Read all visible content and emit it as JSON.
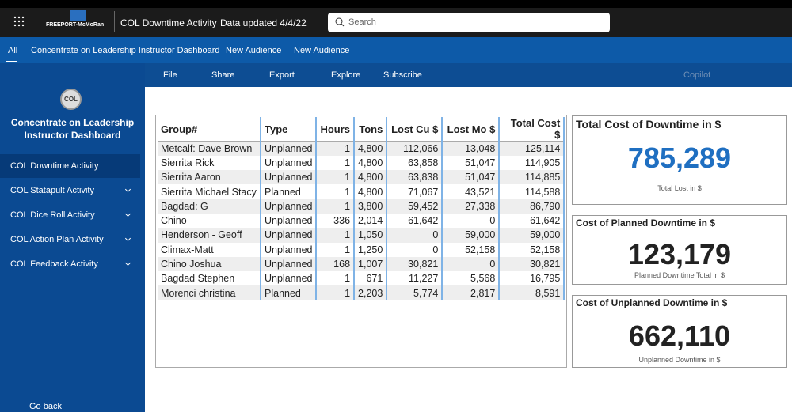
{
  "header": {
    "logo": "FREEPORT-McMoRan",
    "report_name": "COL Downtime Activity",
    "data_updated": "Data updated 4/4/22",
    "search_placeholder": "Search"
  },
  "nav": {
    "tabs": [
      "All",
      "Concentrate on Leadership Instructor Dashboard",
      "New Audience",
      "New Audience"
    ]
  },
  "toolbar": {
    "items": [
      "File",
      "Share",
      "Export",
      "Explore",
      "Subscribe"
    ],
    "copilot": "Copilot"
  },
  "sidebar": {
    "logo": "COL",
    "title": "Concentrate on Leadership Instructor Dashboard",
    "items": [
      "COL Downtime Activity",
      "COL Statapult Activity",
      "COL Dice Roll Activity",
      "COL Action Plan Activity",
      "COL Feedback Activity"
    ],
    "back": "Go back"
  },
  "table": {
    "columns": [
      "Group#",
      "Type",
      "Hours",
      "Tons",
      "Lost Cu $",
      "Lost Mo $",
      "Total Cost $"
    ],
    "rows": [
      [
        "Metcalf: Dave Brown",
        "Unplanned",
        "1",
        "4,800",
        "112,066",
        "13,048",
        "125,114"
      ],
      [
        "Sierrita Rick",
        "Unplanned",
        "1",
        "4,800",
        "63,858",
        "51,047",
        "114,905"
      ],
      [
        "Sierrita Aaron",
        "Unplanned",
        "1",
        "4,800",
        "63,838",
        "51,047",
        "114,885"
      ],
      [
        "Sierrita Michael Stacy",
        "Planned",
        "1",
        "4,800",
        "71,067",
        "43,521",
        "114,588"
      ],
      [
        "Bagdad: G",
        "Unplanned",
        "1",
        "3,800",
        "59,452",
        "27,338",
        "86,790"
      ],
      [
        "Chino",
        "Unplanned",
        "336",
        "2,014",
        "61,642",
        "0",
        "61,642"
      ],
      [
        "Henderson - Geoff",
        "Unplanned",
        "1",
        "1,050",
        "0",
        "59,000",
        "59,000"
      ],
      [
        "Climax-Matt",
        "Unplanned",
        "1",
        "1,250",
        "0",
        "52,158",
        "52,158"
      ],
      [
        "Chino Joshua",
        "Unplanned",
        "168",
        "1,007",
        "30,821",
        "0",
        "30,821"
      ],
      [
        "Bagdad Stephen",
        "Unplanned",
        "1",
        "671",
        "11,227",
        "5,568",
        "16,795"
      ],
      [
        "Morenci christina",
        "Planned",
        "1",
        "2,203",
        "5,774",
        "2,817",
        "8,591"
      ]
    ]
  },
  "cards": [
    {
      "title": "Total Cost of Downtime in $",
      "value": "785,289",
      "label": "Total Lost in $"
    },
    {
      "title": "Cost of Planned Downtime in $",
      "value": "123,179",
      "label": "Planned Downtime Total in $"
    },
    {
      "title": "Cost of Unplanned Downtime in $",
      "value": "662,110",
      "label": "Unplanned Downtime in $"
    }
  ]
}
